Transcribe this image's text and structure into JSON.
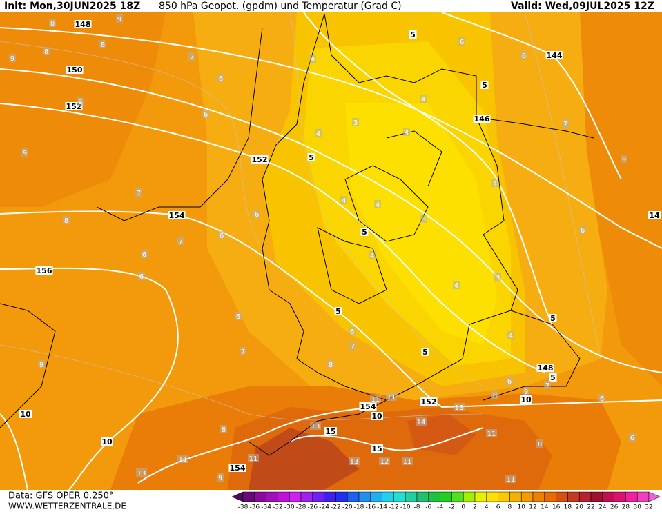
{
  "header": {
    "init": "Init: Mon,30JUN2025 18Z",
    "title": "850 hPa Geopot. (gpdm) und Temperatur (Grad C)",
    "valid": "Valid: Wed,09JUL2025 12Z"
  },
  "footer": {
    "data_source": "Data: GFS OPER 0.250°",
    "website": "WWW.WETTERZENTRALE.DE"
  },
  "colorbar": {
    "ticks": [
      -38,
      -36,
      -34,
      -32,
      -30,
      -28,
      -26,
      -24,
      -22,
      -20,
      -18,
      -16,
      -14,
      -12,
      -10,
      -8,
      -6,
      -4,
      -2,
      0,
      2,
      4,
      6,
      8,
      10,
      12,
      14,
      16,
      18,
      20,
      22,
      24,
      26,
      28,
      30,
      32
    ],
    "colors": [
      "#4b0a5a",
      "#6a0a7a",
      "#8a0a9a",
      "#a010b8",
      "#c010d8",
      "#d020f0",
      "#a020f0",
      "#7020f0",
      "#4020f0",
      "#2030f0",
      "#2060f0",
      "#2090f0",
      "#20b0f0",
      "#20d0f0",
      "#20e0d0",
      "#20d0a0",
      "#20c070",
      "#20c040",
      "#20d020",
      "#50e020",
      "#a0f000",
      "#e8f000",
      "#fce000",
      "#fcc800",
      "#f8b000",
      "#f59a00",
      "#f08000",
      "#e86a00",
      "#d85010",
      "#c83820",
      "#b82030",
      "#a01030",
      "#c01050",
      "#e01070",
      "#f020a0",
      "#f040c0",
      "#f060e0"
    ]
  },
  "geopotential_labels": [
    "148",
    "150",
    "152",
    "152",
    "154",
    "156",
    "144",
    "146",
    "148",
    "152",
    "154",
    "154",
    "14"
  ],
  "isotherm_box_labels": [
    "5",
    "5",
    "5",
    "5",
    "5",
    "5",
    "5",
    "5",
    "10",
    "10",
    "10",
    "10",
    "15",
    "15"
  ],
  "isotherm_labels": [
    "8",
    "9",
    "8",
    "8",
    "9",
    "7",
    "6",
    "6",
    "4",
    "3",
    "4",
    "4",
    "4",
    "6",
    "6",
    "7",
    "9",
    "8",
    "9",
    "7",
    "8",
    "6",
    "6",
    "7",
    "6",
    "6",
    "4",
    "4",
    "3",
    "4",
    "4",
    "6",
    "3",
    "4",
    "4",
    "6",
    "6",
    "7",
    "7",
    "8",
    "9",
    "6",
    "7",
    "8",
    "9",
    "6",
    "11",
    "11",
    "13",
    "14",
    "13",
    "11",
    "8",
    "6",
    "8",
    "11",
    "11",
    "13",
    "12",
    "11",
    "13",
    "9",
    "11"
  ]
}
